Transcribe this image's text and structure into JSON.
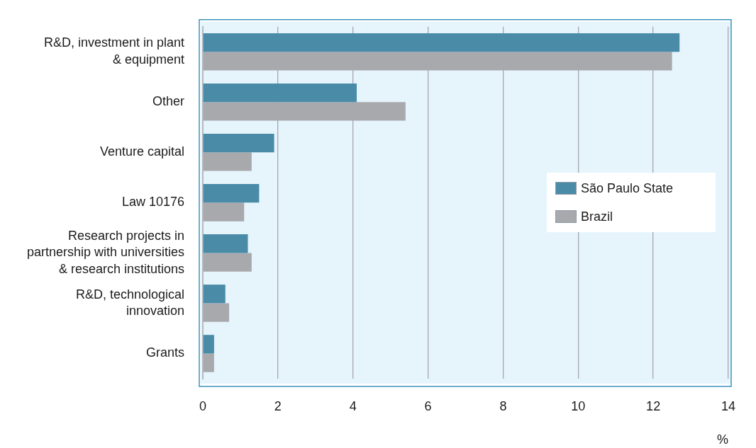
{
  "chart_data": {
    "type": "bar",
    "orientation": "horizontal",
    "xlabel": "%",
    "categories": [
      "R&D, investment in plant & equipment",
      "Other",
      "Venture capital",
      "Law 10176",
      "Research projects in partnership with universities & research institutions",
      "R&D, technological innovation",
      "Grants"
    ],
    "series": [
      {
        "name": "São Paulo State",
        "color": "#4a8ba8",
        "values": [
          12.7,
          4.1,
          1.9,
          1.5,
          1.2,
          0.6,
          0.3
        ]
      },
      {
        "name": "Brazil",
        "color": "#a8a9ad",
        "values": [
          12.5,
          5.4,
          1.3,
          1.1,
          1.3,
          0.7,
          0.3
        ]
      }
    ],
    "xlim": [
      0,
      14
    ],
    "xticks": [
      0,
      2,
      4,
      6,
      8,
      10,
      12,
      14
    ],
    "grid": "x",
    "legend": "right"
  }
}
